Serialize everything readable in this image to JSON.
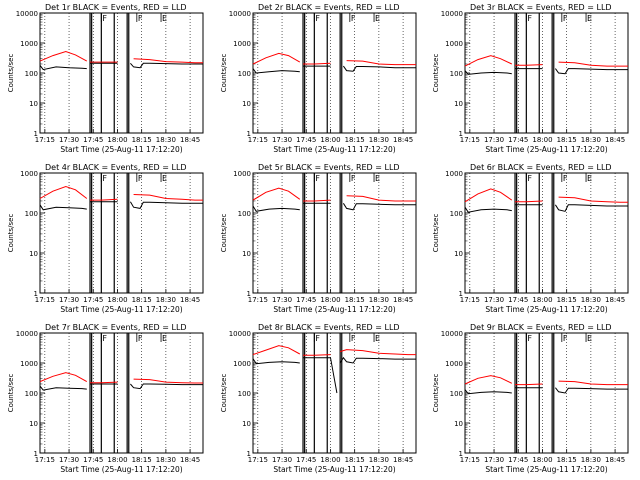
{
  "colors": {
    "events": "#000000",
    "lld": "#ff0000",
    "background": "#ffffff"
  },
  "chart_data": [
    {
      "type": "line",
      "title": "Det 1r BLACK = Events, RED = LLD",
      "xlabel": "Start Time (25-Aug-11 17:12:20)",
      "ylabel": "Counts/sec",
      "yscale": "log",
      "ylim": [
        1,
        10000
      ],
      "xlim": [
        "17:12",
        "18:53"
      ],
      "x_ticks": [
        "17:15",
        "17:30",
        "17:45",
        "18:00",
        "18:15",
        "18:30",
        "18:45"
      ],
      "y_ticks": [
        "1",
        "10",
        "100",
        "1000",
        "10000"
      ],
      "flags": [
        "F",
        "F",
        "E"
      ],
      "series": [
        {
          "color": "red",
          "x": [
            "17:12",
            "17:20",
            "17:28",
            "17:34",
            "17:41",
            "17:43",
            "17:50",
            "18:00",
            "18:10",
            "18:20",
            "18:30",
            "18:40",
            "18:48",
            "18:53"
          ],
          "values": [
            250,
            380,
            520,
            400,
            250,
            230,
            230,
            230,
            300,
            280,
            240,
            230,
            220,
            220
          ]
        },
        {
          "color": "black",
          "x": [
            "17:12",
            "17:14",
            "17:22",
            "17:30",
            "17:38",
            "17:41",
            "17:43",
            "17:50",
            "18:00",
            "18:08",
            "18:10",
            "18:14",
            "18:16",
            "18:20",
            "18:30",
            "18:40",
            "18:48",
            "18:53"
          ],
          "values": [
            180,
            130,
            160,
            150,
            145,
            140,
            210,
            210,
            210,
            210,
            160,
            150,
            210,
            210,
            205,
            200,
            200,
            200
          ]
        }
      ]
    },
    {
      "type": "line",
      "title": "Det 2r BLACK = Events, RED = LLD",
      "xlabel": "Start Time (25-Aug-11 17:12:20)",
      "ylabel": "Counts/sec",
      "yscale": "log",
      "ylim": [
        1,
        10000
      ],
      "xlim": [
        "17:12",
        "18:53"
      ],
      "x_ticks": [
        "17:15",
        "17:30",
        "17:45",
        "18:00",
        "18:15",
        "18:30",
        "18:45"
      ],
      "y_ticks": [
        "1",
        "10",
        "100",
        "1000",
        "10000"
      ],
      "flags": [
        "F",
        "F",
        "E"
      ],
      "series": [
        {
          "color": "red",
          "x": [
            "17:12",
            "17:20",
            "17:28",
            "17:34",
            "17:41",
            "17:43",
            "17:50",
            "18:00",
            "18:10",
            "18:20",
            "18:30",
            "18:40",
            "18:48",
            "18:53"
          ],
          "values": [
            200,
            320,
            450,
            380,
            230,
            200,
            200,
            210,
            260,
            250,
            200,
            190,
            190,
            190
          ]
        },
        {
          "color": "black",
          "x": [
            "17:12",
            "17:14",
            "17:22",
            "17:30",
            "17:38",
            "17:41",
            "17:43",
            "17:50",
            "18:00",
            "18:08",
            "18:10",
            "18:14",
            "18:16",
            "18:20",
            "18:30",
            "18:40",
            "18:48",
            "18:53"
          ],
          "values": [
            140,
            100,
            110,
            120,
            115,
            110,
            170,
            170,
            170,
            170,
            120,
            115,
            165,
            165,
            160,
            150,
            150,
            150
          ]
        }
      ]
    },
    {
      "type": "line",
      "title": "Det 3r BLACK = Events, RED = LLD",
      "xlabel": "Start Time (25-Aug-11 17:12:20)",
      "ylabel": "Counts/sec",
      "yscale": "log",
      "ylim": [
        1,
        10000
      ],
      "xlim": [
        "17:12",
        "18:53"
      ],
      "x_ticks": [
        "17:15",
        "17:30",
        "17:45",
        "18:00",
        "18:15",
        "18:30",
        "18:45"
      ],
      "y_ticks": [
        "1",
        "10",
        "100",
        "1000",
        "10000"
      ],
      "flags": [
        "F",
        "F",
        "E"
      ],
      "series": [
        {
          "color": "red",
          "x": [
            "17:12",
            "17:20",
            "17:28",
            "17:34",
            "17:41",
            "17:43",
            "17:50",
            "18:00",
            "18:10",
            "18:20",
            "18:30",
            "18:40",
            "18:48",
            "18:53"
          ],
          "values": [
            170,
            280,
            380,
            300,
            200,
            180,
            180,
            190,
            230,
            220,
            180,
            170,
            170,
            170
          ]
        },
        {
          "color": "black",
          "x": [
            "17:12",
            "17:14",
            "17:22",
            "17:30",
            "17:38",
            "17:41",
            "17:43",
            "17:50",
            "18:00",
            "18:08",
            "18:10",
            "18:14",
            "18:16",
            "18:20",
            "18:30",
            "18:40",
            "18:48",
            "18:53"
          ],
          "values": [
            120,
            90,
            100,
            105,
            100,
            95,
            140,
            140,
            140,
            140,
            100,
            95,
            140,
            140,
            135,
            130,
            130,
            130
          ]
        }
      ]
    },
    {
      "type": "line",
      "title": "Det 4r BLACK = Events, RED = LLD",
      "xlabel": "Start Time (25-Aug-11 17:12:20)",
      "ylabel": "Counts/sec",
      "yscale": "log",
      "ylim": [
        1,
        1000
      ],
      "xlim": [
        "17:12",
        "18:53"
      ],
      "x_ticks": [
        "17:15",
        "17:30",
        "17:45",
        "18:00",
        "18:15",
        "18:30",
        "18:45"
      ],
      "y_ticks": [
        "1",
        "10",
        "100",
        "1000"
      ],
      "flags": [
        "F",
        "F",
        "E"
      ],
      "series": [
        {
          "color": "red",
          "x": [
            "17:12",
            "17:20",
            "17:28",
            "17:34",
            "17:41",
            "17:43",
            "17:50",
            "18:00",
            "18:10",
            "18:20",
            "18:30",
            "18:40",
            "18:48",
            "18:53"
          ],
          "values": [
            230,
            350,
            460,
            380,
            230,
            210,
            210,
            220,
            290,
            280,
            230,
            220,
            210,
            210
          ]
        },
        {
          "color": "black",
          "x": [
            "17:12",
            "17:14",
            "17:22",
            "17:30",
            "17:38",
            "17:41",
            "17:43",
            "17:50",
            "18:00",
            "18:08",
            "18:10",
            "18:14",
            "18:16",
            "18:20",
            "18:30",
            "18:40",
            "18:48",
            "18:53"
          ],
          "values": [
            160,
            120,
            140,
            135,
            130,
            125,
            190,
            190,
            190,
            190,
            140,
            130,
            185,
            185,
            180,
            175,
            175,
            175
          ]
        }
      ]
    },
    {
      "type": "line",
      "title": "Det 5r BLACK = Events, RED = LLD",
      "xlabel": "Start Time (25-Aug-11 17:12:20)",
      "ylabel": "Counts/sec",
      "yscale": "log",
      "ylim": [
        1,
        1000
      ],
      "xlim": [
        "17:12",
        "18:53"
      ],
      "x_ticks": [
        "17:15",
        "17:30",
        "17:45",
        "18:00",
        "18:15",
        "18:30",
        "18:45"
      ],
      "y_ticks": [
        "1",
        "10",
        "100",
        "1000"
      ],
      "flags": [
        "F",
        "F",
        "E"
      ],
      "series": [
        {
          "color": "red",
          "x": [
            "17:12",
            "17:20",
            "17:28",
            "17:34",
            "17:41",
            "17:43",
            "17:50",
            "18:00",
            "18:10",
            "18:20",
            "18:30",
            "18:40",
            "18:48",
            "18:53"
          ],
          "values": [
            210,
            330,
            420,
            350,
            220,
            200,
            200,
            210,
            270,
            260,
            210,
            200,
            200,
            200
          ]
        },
        {
          "color": "black",
          "x": [
            "17:12",
            "17:14",
            "17:22",
            "17:30",
            "17:38",
            "17:41",
            "17:43",
            "17:50",
            "18:00",
            "18:08",
            "18:10",
            "18:14",
            "18:16",
            "18:20",
            "18:30",
            "18:40",
            "18:48",
            "18:53"
          ],
          "values": [
            150,
            110,
            125,
            130,
            125,
            120,
            175,
            175,
            175,
            175,
            130,
            120,
            170,
            170,
            165,
            160,
            160,
            160
          ]
        }
      ]
    },
    {
      "type": "line",
      "title": "Det 6r BLACK = Events, RED = LLD",
      "xlabel": "Start Time (25-Aug-11 17:12:20)",
      "ylabel": "Counts/sec",
      "yscale": "log",
      "ylim": [
        1,
        1000
      ],
      "xlim": [
        "17:12",
        "18:53"
      ],
      "x_ticks": [
        "17:15",
        "17:30",
        "17:45",
        "18:00",
        "18:15",
        "18:30",
        "18:45"
      ],
      "y_ticks": [
        "1",
        "10",
        "100",
        "1000"
      ],
      "flags": [
        "F",
        "F",
        "E"
      ],
      "series": [
        {
          "color": "red",
          "x": [
            "17:12",
            "17:20",
            "17:28",
            "17:34",
            "17:41",
            "17:43",
            "17:50",
            "18:00",
            "18:10",
            "18:20",
            "18:30",
            "18:40",
            "18:48",
            "18:53"
          ],
          "values": [
            190,
            300,
            400,
            330,
            210,
            190,
            190,
            200,
            250,
            240,
            200,
            190,
            185,
            185
          ]
        },
        {
          "color": "black",
          "x": [
            "17:12",
            "17:14",
            "17:22",
            "17:30",
            "17:38",
            "17:41",
            "17:43",
            "17:50",
            "18:00",
            "18:08",
            "18:10",
            "18:14",
            "18:16",
            "18:20",
            "18:30",
            "18:40",
            "18:48",
            "18:53"
          ],
          "values": [
            140,
            105,
            120,
            125,
            120,
            115,
            160,
            160,
            160,
            160,
            120,
            110,
            160,
            160,
            155,
            150,
            150,
            150
          ]
        }
      ]
    },
    {
      "type": "line",
      "title": "Det 7r BLACK = Events, RED = LLD",
      "xlabel": "Start Time (25-Aug-11 17:12:20)",
      "ylabel": "Counts/sec",
      "yscale": "log",
      "ylim": [
        1,
        10000
      ],
      "xlim": [
        "17:12",
        "18:53"
      ],
      "x_ticks": [
        "17:15",
        "17:30",
        "17:45",
        "18:00",
        "18:15",
        "18:30",
        "18:45"
      ],
      "y_ticks": [
        "1",
        "10",
        "100",
        "1000",
        "10000"
      ],
      "flags": [
        "F",
        "F",
        "E"
      ],
      "series": [
        {
          "color": "red",
          "x": [
            "17:12",
            "17:20",
            "17:28",
            "17:34",
            "17:41",
            "17:43",
            "17:50",
            "18:00",
            "18:10",
            "18:20",
            "18:30",
            "18:40",
            "18:48",
            "18:53"
          ],
          "values": [
            240,
            360,
            480,
            390,
            240,
            220,
            220,
            230,
            290,
            280,
            230,
            220,
            215,
            215
          ]
        },
        {
          "color": "black",
          "x": [
            "17:12",
            "17:14",
            "17:22",
            "17:30",
            "17:38",
            "17:41",
            "17:43",
            "17:50",
            "18:00",
            "18:08",
            "18:10",
            "18:14",
            "18:16",
            "18:20",
            "18:30",
            "18:40",
            "18:48",
            "18:53"
          ],
          "values": [
            170,
            125,
            150,
            145,
            140,
            135,
            200,
            200,
            200,
            200,
            150,
            140,
            200,
            200,
            195,
            190,
            190,
            190
          ]
        }
      ]
    },
    {
      "type": "line",
      "title": "Det 8r BLACK = Events, RED = LLD",
      "xlabel": "Start Time (25-Aug-11 17:12:20)",
      "ylabel": "Counts/sec",
      "yscale": "log",
      "ylim": [
        1,
        10000
      ],
      "xlim": [
        "17:12",
        "18:53"
      ],
      "x_ticks": [
        "17:15",
        "17:30",
        "17:45",
        "18:00",
        "18:15",
        "18:30",
        "18:45"
      ],
      "y_ticks": [
        "1",
        "10",
        "100",
        "1000",
        "10000"
      ],
      "flags": [
        "F",
        "F",
        "E"
      ],
      "series": [
        {
          "color": "red",
          "x": [
            "17:12",
            "17:20",
            "17:28",
            "17:34",
            "17:41",
            "17:43",
            "17:50",
            "18:00",
            "18:06",
            "18:10",
            "18:20",
            "18:30",
            "18:40",
            "18:48",
            "18:53"
          ],
          "values": [
            1900,
            2700,
            3800,
            3200,
            2000,
            1800,
            1800,
            1900,
            2400,
            2800,
            2600,
            2100,
            2000,
            1900,
            1900
          ]
        },
        {
          "color": "black",
          "x": [
            "17:12",
            "17:14",
            "17:22",
            "17:30",
            "17:38",
            "17:41",
            "17:43",
            "17:50",
            "18:00",
            "18:04",
            "18:06",
            "18:08",
            "18:10",
            "18:14",
            "18:16",
            "18:20",
            "18:30",
            "18:40",
            "18:48",
            "18:53"
          ],
          "values": [
            1400,
            950,
            1050,
            1100,
            1050,
            1000,
            1500,
            1500,
            1500,
            100,
            1000,
            1500,
            1100,
            1000,
            1450,
            1450,
            1400,
            1350,
            1350,
            1350
          ]
        }
      ]
    },
    {
      "type": "line",
      "title": "Det 9r BLACK = Events, RED = LLD",
      "xlabel": "Start Time (25-Aug-11 17:12:20)",
      "ylabel": "Counts/sec",
      "yscale": "log",
      "ylim": [
        1,
        10000
      ],
      "xlim": [
        "17:12",
        "18:53"
      ],
      "x_ticks": [
        "17:15",
        "17:30",
        "17:45",
        "18:00",
        "18:15",
        "18:30",
        "18:45"
      ],
      "y_ticks": [
        "1",
        "10",
        "100",
        "1000",
        "10000"
      ],
      "flags": [
        "F",
        "F",
        "E"
      ],
      "series": [
        {
          "color": "red",
          "x": [
            "17:12",
            "17:20",
            "17:28",
            "17:34",
            "17:41",
            "17:43",
            "17:50",
            "18:00",
            "18:10",
            "18:20",
            "18:30",
            "18:40",
            "18:48",
            "18:53"
          ],
          "values": [
            200,
            310,
            380,
            320,
            210,
            190,
            190,
            200,
            250,
            240,
            200,
            190,
            190,
            190
          ]
        },
        {
          "color": "black",
          "x": [
            "17:12",
            "17:14",
            "17:22",
            "17:30",
            "17:38",
            "17:41",
            "17:43",
            "17:50",
            "18:00",
            "18:08",
            "18:10",
            "18:14",
            "18:16",
            "18:20",
            "18:30",
            "18:40",
            "18:48",
            "18:53"
          ],
          "values": [
            130,
            95,
            105,
            110,
            105,
            100,
            150,
            150,
            150,
            150,
            110,
            100,
            145,
            145,
            140,
            135,
            135,
            135
          ]
        }
      ]
    }
  ]
}
